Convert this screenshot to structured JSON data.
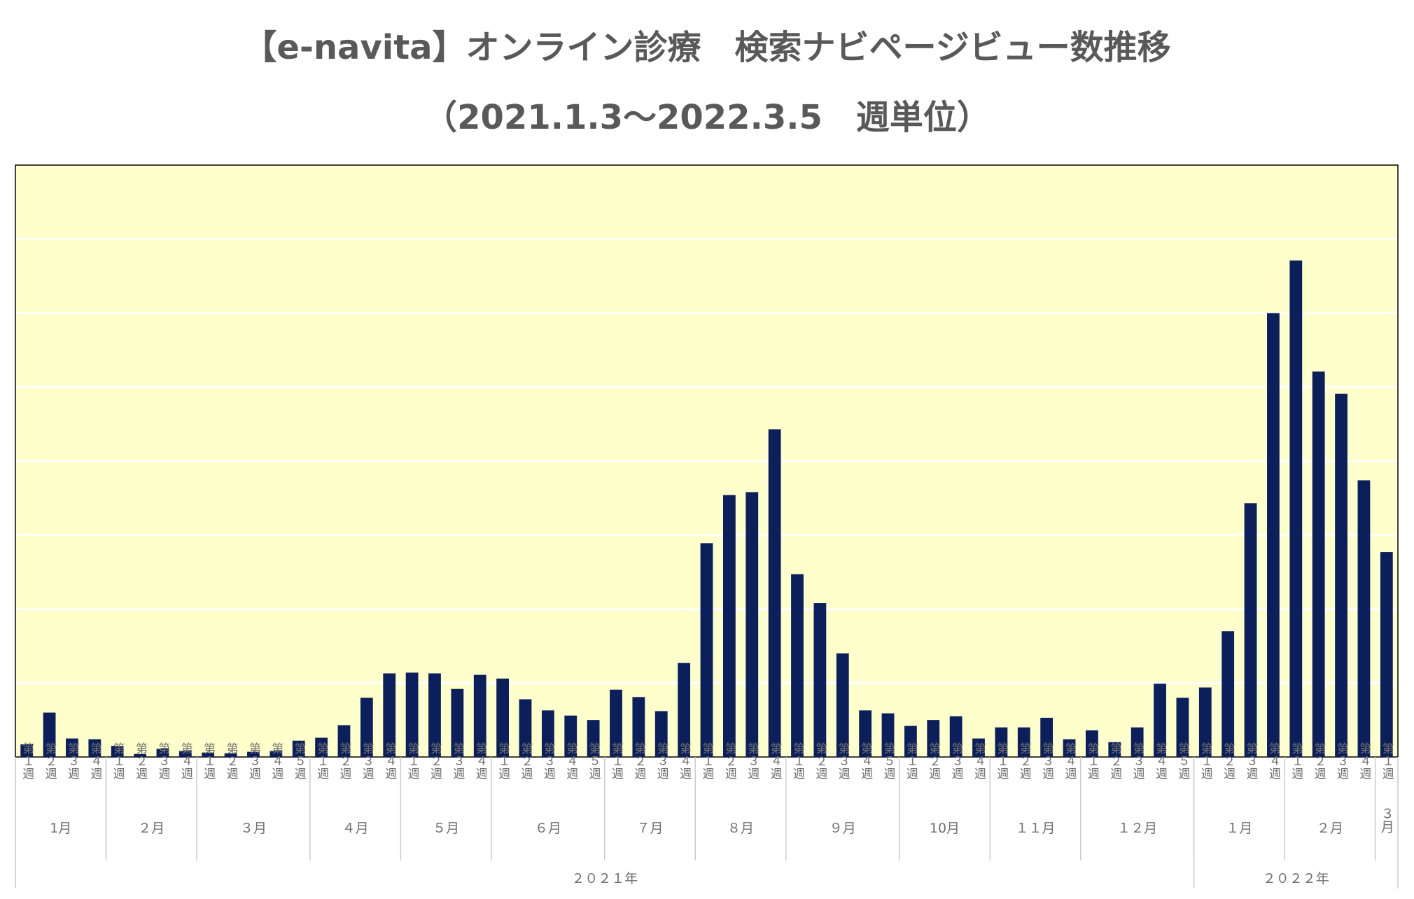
{
  "title": "【e-navita】オンライン診療　検索ナビページビュー数推移",
  "subtitle": "（2021.1.3～2022.3.5　週単位）",
  "colors": {
    "bar": "#0b1f5c",
    "plot_bg": "#ffffcc",
    "grid": "#ffffff",
    "axis": "#cccccc"
  },
  "chart_data": {
    "type": "bar",
    "title": "【e-navita】オンライン診療　検索ナビページビュー数推移",
    "subtitle": "（2021.1.3～2022.3.5　週単位）",
    "xlabel": "",
    "ylabel": "",
    "ylim": [
      0,
      800
    ],
    "grid": true,
    "y_tick_labels_visible": false,
    "categories": [
      "第１週",
      "第２週",
      "第３週",
      "第４週",
      "第１週",
      "第２週",
      "第３週",
      "第４週",
      "第１週",
      "第２週",
      "第３週",
      "第４週",
      "第５週",
      "第１週",
      "第２週",
      "第３週",
      "第４週",
      "第１週",
      "第２週",
      "第３週",
      "第４週",
      "第１週",
      "第２週",
      "第３週",
      "第４週",
      "第５週",
      "第１週",
      "第２週",
      "第３週",
      "第４週",
      "第１週",
      "第２週",
      "第３週",
      "第４週",
      "第１週",
      "第２週",
      "第３週",
      "第４週",
      "第５週",
      "第１週",
      "第２週",
      "第３週",
      "第４週",
      "第１週",
      "第２週",
      "第３週",
      "第４週",
      "第１週",
      "第２週",
      "第３週",
      "第４週",
      "第５週",
      "第１週",
      "第２週",
      "第３週",
      "第４週",
      "第１週",
      "第２週",
      "第３週",
      "第４週",
      "第１週"
    ],
    "values": [
      17,
      60,
      25,
      24,
      15,
      4,
      11,
      8,
      6,
      5,
      7,
      8,
      22,
      26,
      43,
      80,
      113,
      114,
      113,
      92,
      111,
      106,
      78,
      63,
      56,
      50,
      91,
      81,
      62,
      127,
      289,
      354,
      358,
      443,
      247,
      208,
      140,
      63,
      59,
      42,
      50,
      55,
      25,
      40,
      40,
      53,
      24,
      36,
      20,
      40,
      99,
      80,
      94,
      170,
      343,
      600,
      671,
      521,
      491,
      374,
      277
    ],
    "month_groups": [
      {
        "label": "1月",
        "count": 4
      },
      {
        "label": "２月",
        "count": 4
      },
      {
        "label": "３月",
        "count": 5
      },
      {
        "label": "４月",
        "count": 4
      },
      {
        "label": "５月",
        "count": 4
      },
      {
        "label": "６月",
        "count": 5
      },
      {
        "label": "７月",
        "count": 4
      },
      {
        "label": "８月",
        "count": 4
      },
      {
        "label": "９月",
        "count": 5
      },
      {
        "label": "10月",
        "count": 4
      },
      {
        "label": "１１月",
        "count": 4
      },
      {
        "label": "１２月",
        "count": 5
      },
      {
        "label": "１月",
        "count": 4
      },
      {
        "label": "２月",
        "count": 4
      },
      {
        "label": "３月",
        "count": 1
      }
    ],
    "year_groups": [
      {
        "label": "２０２１年",
        "count": 52
      },
      {
        "label": "２０２２年",
        "count": 9
      }
    ]
  }
}
